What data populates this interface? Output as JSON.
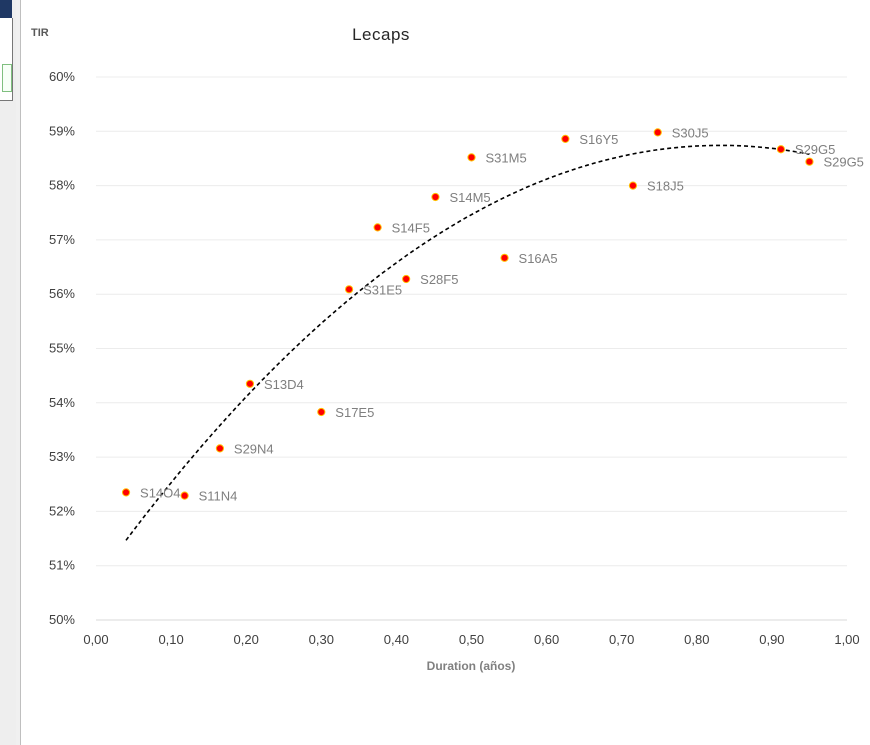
{
  "chart_data": {
    "type": "scatter",
    "title": "Lecaps",
    "xlabel": "Duration (años)",
    "ylabel": "TIR",
    "xlim": [
      0,
      1
    ],
    "ylim": [
      50,
      60
    ],
    "x_ticks": [
      "0,00",
      "0,10",
      "0,20",
      "0,30",
      "0,40",
      "0,50",
      "0,60",
      "0,70",
      "0,80",
      "0,90",
      "1,00"
    ],
    "y_ticks": [
      "50%",
      "51%",
      "52%",
      "53%",
      "54%",
      "55%",
      "56%",
      "57%",
      "58%",
      "59%",
      "60%"
    ],
    "grid": "horizontal",
    "marker_color": "#ff0000",
    "trendline": {
      "style": "dashed",
      "kind": "polynomial",
      "color": "#000000",
      "x_range": [
        0.04,
        0.95
      ]
    },
    "points": [
      {
        "label": "S14O4",
        "x": 0.04,
        "y": 52.35
      },
      {
        "label": "S11N4",
        "x": 0.118,
        "y": 52.29
      },
      {
        "label": "S29N4",
        "x": 0.165,
        "y": 53.16
      },
      {
        "label": "S13D4",
        "x": 0.205,
        "y": 54.35
      },
      {
        "label": "S17E5",
        "x": 0.3,
        "y": 53.83
      },
      {
        "label": "S31E5",
        "x": 0.337,
        "y": 56.09
      },
      {
        "label": "S14F5",
        "x": 0.375,
        "y": 57.23
      },
      {
        "label": "S28F5",
        "x": 0.413,
        "y": 56.28
      },
      {
        "label": "S14M5",
        "x": 0.452,
        "y": 57.79
      },
      {
        "label": "S31M5",
        "x": 0.5,
        "y": 58.52
      },
      {
        "label": "S16A5",
        "x": 0.544,
        "y": 56.67
      },
      {
        "label": "S16Y5",
        "x": 0.625,
        "y": 58.86
      },
      {
        "label": "S18J5",
        "x": 0.715,
        "y": 58.0
      },
      {
        "label": "S30J5",
        "x": 0.748,
        "y": 58.98
      },
      {
        "label": "S29G5",
        "x": 0.912,
        "y": 58.67
      },
      {
        "label": "S29G5",
        "x": 0.95,
        "y": 58.44
      }
    ]
  }
}
